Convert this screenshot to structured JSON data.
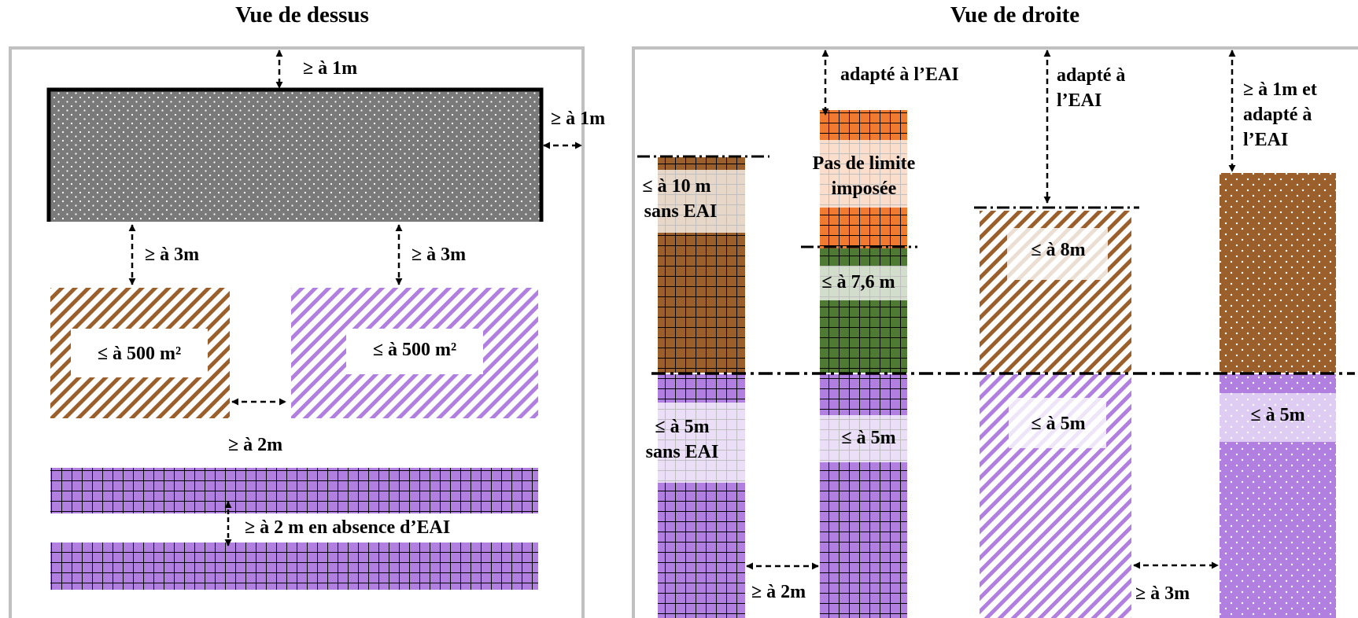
{
  "titles": {
    "top_view": "Vue de dessus",
    "right_view": "Vue de droite"
  },
  "top_view": {
    "dist_top": "≥ à 1m",
    "dist_right": "≥ à 1m",
    "dist_left_block": "≥ à 3m",
    "dist_right_block": "≥ à 3m",
    "area_left": "≤ à 500 m²",
    "area_right": "≤ à 500 m²",
    "dist_between_blocks": "≥ à 2m",
    "dist_between_rows": "≥ à 2 m en absence d’EAI"
  },
  "right_view": {
    "col1_height_line1": "≤ à 10 m",
    "col1_height_line2": "sans EAI",
    "col1_low_line1": "≤ à 5m",
    "col1_low_line2": "sans EAI",
    "col2_top_gap": "adapté à l’EAI",
    "col2_limit_line1": "Pas de limite",
    "col2_limit_line2": "imposée",
    "col2_mid": "≤ à 7,6 m",
    "col2_low": "≤ à 5m",
    "gap_col1_col2": "≥ à 2m",
    "col3_top_gap_line1": "adapté à",
    "col3_top_gap_line2": "l’EAI",
    "col3_high": "≤ à 8m",
    "col3_low": "≤ à 5m",
    "gap_col3_col4": "≥ à 3m",
    "col4_top_gap_line1": "≥ à 1m et",
    "col4_top_gap_line2": "adapté à",
    "col4_top_gap_line3": "l’EAI",
    "col4_low": "≤ à 5m"
  },
  "colors": {
    "storage_gray": "#7a7a7a",
    "brown": "#9b5f2b",
    "purple": "#b07fe0",
    "orange": "#f07a30",
    "green": "#4f7a33"
  }
}
